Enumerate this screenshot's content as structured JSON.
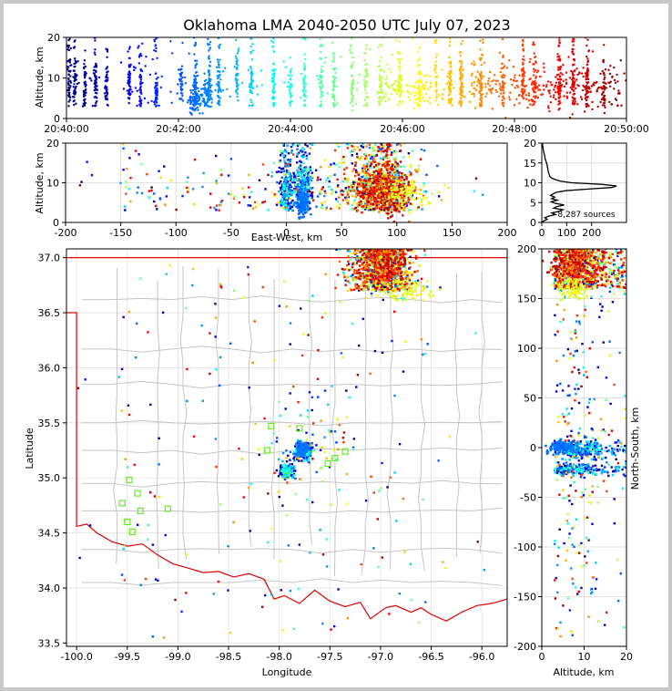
{
  "chart_data": [
    {
      "panel": "time-altitude",
      "type": "scatter",
      "title": "Oklahoma LMA 2040-2050 UTC July 07, 2023",
      "xlabel": "",
      "ylabel": "Altitude, km",
      "xticks": [
        "20:40:00",
        "20:42:00",
        "20:44:00",
        "20:46:00",
        "20:48:00",
        "20:50:00"
      ],
      "xlim_minutes": [
        0,
        10
      ],
      "ylim": [
        0,
        20
      ],
      "yticks": [
        0,
        10,
        20
      ],
      "color_by": "time",
      "bursts_minutes": [
        0.05,
        0.15,
        0.32,
        0.52,
        0.72,
        1.12,
        1.32,
        1.6,
        2.05,
        2.3,
        2.55,
        2.72,
        3.05,
        3.3,
        3.7,
        4.0,
        4.25,
        4.55,
        4.78,
        5.1,
        5.35,
        5.6,
        5.95,
        6.3,
        6.6,
        6.85,
        7.05,
        7.4,
        7.8,
        8.15,
        8.35,
        8.8,
        9.05,
        9.3,
        9.6
      ]
    },
    {
      "panel": "east-west-altitude",
      "type": "scatter",
      "xlabel": "East-West, km",
      "ylabel": "Altitude, km",
      "xlim": [
        -200,
        200
      ],
      "xticks": [
        -200,
        -150,
        -100,
        -50,
        0,
        50,
        100,
        150,
        200
      ],
      "ylim": [
        0,
        20
      ],
      "yticks": [
        0,
        10,
        20
      ]
    },
    {
      "panel": "altitude-histogram",
      "type": "line",
      "xlim": [
        0,
        340
      ],
      "xticks": [
        0,
        100,
        200
      ],
      "ylim": [
        0,
        20
      ],
      "yticks": [
        0,
        5,
        10,
        15,
        20
      ],
      "annotation": "8,287 sources",
      "profile": [
        {
          "alt": 0.0,
          "count": 0
        },
        {
          "alt": 0.4,
          "count": 8
        },
        {
          "alt": 0.8,
          "count": 22
        },
        {
          "alt": 1.2,
          "count": 12
        },
        {
          "alt": 1.6,
          "count": 30
        },
        {
          "alt": 2.0,
          "count": 55
        },
        {
          "alt": 2.4,
          "count": 40
        },
        {
          "alt": 2.8,
          "count": 70
        },
        {
          "alt": 3.2,
          "count": 85
        },
        {
          "alt": 3.6,
          "count": 48
        },
        {
          "alt": 4.0,
          "count": 60
        },
        {
          "alt": 4.4,
          "count": 90
        },
        {
          "alt": 4.8,
          "count": 55
        },
        {
          "alt": 5.2,
          "count": 38
        },
        {
          "alt": 5.6,
          "count": 62
        },
        {
          "alt": 6.0,
          "count": 40
        },
        {
          "alt": 6.4,
          "count": 52
        },
        {
          "alt": 6.8,
          "count": 35
        },
        {
          "alt": 7.2,
          "count": 45
        },
        {
          "alt": 7.6,
          "count": 60
        },
        {
          "alt": 8.0,
          "count": 95
        },
        {
          "alt": 8.4,
          "count": 180
        },
        {
          "alt": 8.8,
          "count": 280
        },
        {
          "alt": 9.2,
          "count": 300
        },
        {
          "alt": 9.6,
          "count": 240
        },
        {
          "alt": 10.0,
          "count": 120
        },
        {
          "alt": 10.4,
          "count": 75
        },
        {
          "alt": 10.8,
          "count": 55
        },
        {
          "alt": 11.2,
          "count": 40
        },
        {
          "alt": 11.6,
          "count": 32
        },
        {
          "alt": 12.0,
          "count": 30
        },
        {
          "alt": 12.4,
          "count": 28
        },
        {
          "alt": 12.8,
          "count": 26
        },
        {
          "alt": 13.2,
          "count": 25
        },
        {
          "alt": 13.6,
          "count": 24
        },
        {
          "alt": 14.0,
          "count": 22
        },
        {
          "alt": 14.4,
          "count": 22
        },
        {
          "alt": 14.8,
          "count": 20
        },
        {
          "alt": 15.2,
          "count": 18
        },
        {
          "alt": 15.6,
          "count": 16
        },
        {
          "alt": 16.0,
          "count": 14
        },
        {
          "alt": 16.4,
          "count": 12
        },
        {
          "alt": 16.8,
          "count": 12
        },
        {
          "alt": 17.2,
          "count": 10
        },
        {
          "alt": 17.6,
          "count": 8
        },
        {
          "alt": 18.0,
          "count": 7
        },
        {
          "alt": 18.4,
          "count": 6
        },
        {
          "alt": 18.8,
          "count": 5
        },
        {
          "alt": 19.2,
          "count": 4
        },
        {
          "alt": 19.6,
          "count": 3
        },
        {
          "alt": 20.0,
          "count": 2
        }
      ]
    },
    {
      "panel": "plan-view",
      "type": "scatter",
      "xlabel": "Longitude",
      "ylabel": "Latitude",
      "xlim": [
        -100.1,
        -95.75
      ],
      "xticks": [
        -100.0,
        -99.5,
        -99.0,
        -98.5,
        -98.0,
        -97.5,
        -97.0,
        -96.5,
        -96.0
      ],
      "ylim": [
        33.47,
        37.08
      ],
      "yticks": [
        33.5,
        34.0,
        34.5,
        35.0,
        35.5,
        36.0,
        36.5,
        37.0
      ],
      "stations": [
        {
          "lon": -98.08,
          "lat": 35.47
        },
        {
          "lon": -97.8,
          "lat": 35.45
        },
        {
          "lon": -97.35,
          "lat": 35.24
        },
        {
          "lon": -97.45,
          "lat": 35.18
        },
        {
          "lon": -97.52,
          "lat": 35.13
        },
        {
          "lon": -98.12,
          "lat": 35.25
        },
        {
          "lon": -97.93,
          "lat": 35.02
        },
        {
          "lon": -99.48,
          "lat": 34.98
        },
        {
          "lon": -99.4,
          "lat": 34.86
        },
        {
          "lon": -99.55,
          "lat": 34.77
        },
        {
          "lon": -99.37,
          "lat": 34.7
        },
        {
          "lon": -99.1,
          "lat": 34.72
        },
        {
          "lon": -99.5,
          "lat": 34.6
        },
        {
          "lon": -99.45,
          "lat": 34.51
        }
      ]
    },
    {
      "panel": "altitude-north-south",
      "type": "scatter",
      "xlabel": "Altitude, km",
      "ylabel": "North-South, km",
      "xlim": [
        0,
        20
      ],
      "xticks": [
        0,
        10,
        20
      ],
      "ylim": [
        -200,
        200
      ],
      "yticks": [
        -200,
        -150,
        -100,
        -50,
        0,
        50,
        100,
        150,
        200
      ]
    }
  ]
}
